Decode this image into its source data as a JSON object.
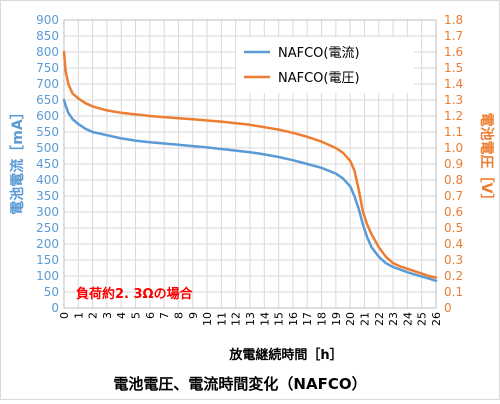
{
  "chart_data": {
    "type": "line",
    "title": "電池電圧、電流時間変化（NAFCO）",
    "xlabel": "放電継続時間［h］",
    "ylabel_left": "電池電流［mA］",
    "ylabel_right": "電池電圧［V］",
    "annotation": "負荷約2. 3Ωの場合",
    "xlim": [
      0,
      26
    ],
    "ylim_left": [
      0,
      900
    ],
    "ylim_right": [
      0,
      1.8
    ],
    "x_ticks": [
      0,
      1,
      2,
      3,
      4,
      5,
      6,
      7,
      8,
      9,
      10,
      11,
      12,
      13,
      14,
      15,
      16,
      17,
      18,
      19,
      20,
      21,
      22,
      23,
      24,
      25,
      26
    ],
    "y_left_ticks": [
      0,
      50,
      100,
      150,
      200,
      250,
      300,
      350,
      400,
      450,
      500,
      550,
      600,
      650,
      700,
      750,
      800,
      850,
      900
    ],
    "y_right_ticks": [
      "0",
      "0.1",
      "0.2",
      "0.3",
      "0.4",
      "0.5",
      "0.6",
      "0.7",
      "0.8",
      "0.9",
      "1.0",
      "1.1",
      "1.2",
      "1.3",
      "1.4",
      "1.5",
      "1.6",
      "1.7",
      "1.8"
    ],
    "grid": true,
    "legend_position": "top-right",
    "series": [
      {
        "name": "NAFCO(電流)",
        "axis": "left",
        "color": "#5b9bd5",
        "x": [
          0,
          0.1,
          0.3,
          0.6,
          1,
          1.5,
          2,
          3,
          4,
          5,
          6,
          7,
          8,
          9,
          10,
          11,
          12,
          13,
          14,
          15,
          16,
          17,
          18,
          19,
          19.5,
          20,
          20.3,
          20.6,
          20.9,
          21.2,
          21.5,
          22,
          22.5,
          23,
          23.5,
          24,
          24.5,
          25,
          25.5,
          26
        ],
        "values": [
          650,
          635,
          610,
          590,
          575,
          560,
          550,
          540,
          530,
          523,
          518,
          514,
          510,
          506,
          502,
          497,
          492,
          487,
          480,
          472,
          462,
          450,
          438,
          420,
          405,
          380,
          350,
          310,
          260,
          220,
          190,
          160,
          140,
          128,
          120,
          112,
          105,
          98,
          92,
          85
        ]
      },
      {
        "name": "NAFCO(電圧)",
        "axis": "right",
        "color": "#ed7d31",
        "x": [
          0,
          0.1,
          0.3,
          0.6,
          1,
          1.5,
          2,
          3,
          4,
          5,
          6,
          7,
          8,
          9,
          10,
          11,
          12,
          13,
          14,
          15,
          16,
          17,
          18,
          19,
          19.5,
          20,
          20.3,
          20.6,
          20.9,
          21.2,
          21.5,
          22,
          22.5,
          23,
          23.5,
          24,
          24.5,
          25,
          25.5,
          26
        ],
        "values": [
          1.6,
          1.49,
          1.4,
          1.34,
          1.31,
          1.28,
          1.26,
          1.235,
          1.22,
          1.21,
          1.2,
          1.193,
          1.186,
          1.18,
          1.172,
          1.165,
          1.155,
          1.145,
          1.13,
          1.115,
          1.095,
          1.07,
          1.04,
          1.0,
          0.97,
          0.92,
          0.86,
          0.74,
          0.6,
          0.52,
          0.46,
          0.38,
          0.32,
          0.28,
          0.26,
          0.245,
          0.23,
          0.215,
          0.2,
          0.19
        ]
      }
    ]
  }
}
